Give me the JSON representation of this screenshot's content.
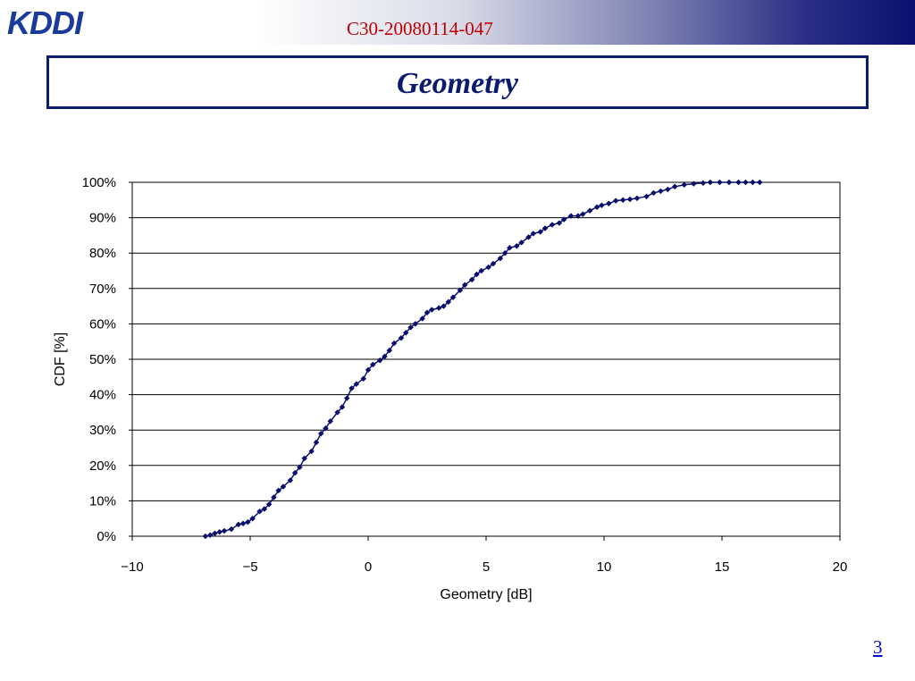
{
  "header": {
    "doc_id": "C30-20080114-047",
    "logo_text": "KDDI",
    "colors": {
      "band_start": "#ffffff",
      "band_end": "#0a0f6e",
      "doc_id": "#c00000",
      "logo": "#1a3a9c"
    }
  },
  "slide": {
    "title": "Geometry",
    "page_number": "3"
  },
  "chart_data": {
    "type": "scatter",
    "xlabel": "Geometry [dB]",
    "ylabel": "CDF [%]",
    "xlim": [
      -10,
      20
    ],
    "ylim": [
      0,
      100
    ],
    "x_ticks": [
      "-10",
      "-5",
      "0",
      "5",
      "10",
      "15",
      "20"
    ],
    "y_ticks": [
      "0%",
      "10%",
      "20%",
      "30%",
      "40%",
      "50%",
      "60%",
      "70%",
      "80%",
      "90%",
      "100%"
    ],
    "grid": "horizontal",
    "line_connected": true,
    "marker": "diamond",
    "color": "#0a0f6e",
    "series": [
      {
        "x": [
          -6.9,
          -6.7,
          -6.5,
          -6.3,
          -6.1,
          -5.8,
          -5.5,
          -5.3,
          -5.1,
          -4.9,
          -4.6,
          -4.4,
          -4.2,
          -4.0,
          -3.8,
          -3.6,
          -3.3,
          -3.1,
          -2.9,
          -2.7,
          -2.4,
          -2.2,
          -2.0,
          -1.8,
          -1.6,
          -1.3,
          -1.1,
          -0.9,
          -0.7,
          -0.5,
          -0.2,
          0.0,
          0.2,
          0.5,
          0.7,
          0.9,
          1.1,
          1.4,
          1.6,
          1.8,
          2.0,
          2.3,
          2.5,
          2.7,
          3.0,
          3.2,
          3.4,
          3.6,
          3.9,
          4.1,
          4.4,
          4.6,
          4.8,
          5.1,
          5.3,
          5.6,
          5.8,
          6.0,
          6.3,
          6.5,
          6.8,
          7.0,
          7.3,
          7.5,
          7.8,
          8.1,
          8.3,
          8.6,
          8.9,
          9.1,
          9.4,
          9.7,
          9.9,
          10.2,
          10.5,
          10.8,
          11.1,
          11.4,
          11.8,
          12.1,
          12.4,
          12.7,
          13.0,
          13.4,
          13.8,
          14.2,
          14.5,
          14.9,
          15.3,
          15.7,
          16.0,
          16.3,
          16.6
        ],
        "y": [
          0,
          0.3,
          0.8,
          1.2,
          1.5,
          2.0,
          3.3,
          3.6,
          4.0,
          5.0,
          7.0,
          7.7,
          9.0,
          11.0,
          12.9,
          14.0,
          15.8,
          17.9,
          19.5,
          22.0,
          24.0,
          26.5,
          29.0,
          30.5,
          32.5,
          35.0,
          36.5,
          39.0,
          41.8,
          43.0,
          44.5,
          47.0,
          48.5,
          49.7,
          50.8,
          52.5,
          54.5,
          56.0,
          57.5,
          59.0,
          60.0,
          61.5,
          63.2,
          64.0,
          64.5,
          65.0,
          66.2,
          67.5,
          69.5,
          71.0,
          72.5,
          74.0,
          75.0,
          76.0,
          77.0,
          78.5,
          80.0,
          81.5,
          82.0,
          83.0,
          84.5,
          85.5,
          86.0,
          87.0,
          88.0,
          88.5,
          89.5,
          90.5,
          90.5,
          91.0,
          92.0,
          93.0,
          93.5,
          94.0,
          94.8,
          95.0,
          95.2,
          95.5,
          96.0,
          97.0,
          97.5,
          98.0,
          98.8,
          99.3,
          99.6,
          99.8,
          100,
          100,
          100,
          100,
          100,
          100,
          100
        ]
      }
    ]
  }
}
